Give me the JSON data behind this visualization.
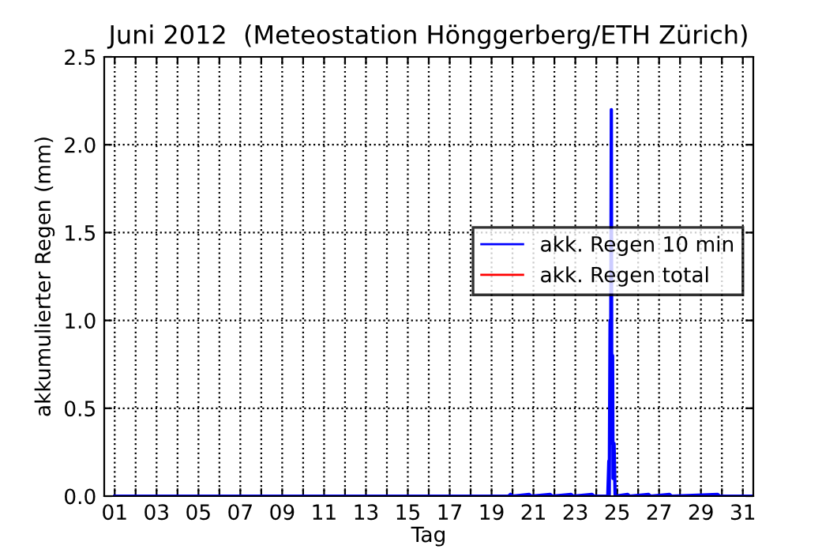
{
  "chart_data": {
    "type": "line",
    "title": "Juni 2012  (Meteostation Hönggerberg/ETH Zürich)",
    "xlabel": "Tag",
    "ylabel": "akkumulierter Regen (mm)",
    "x": [
      1,
      19.8,
      19.9,
      20.0,
      20.8,
      20.9,
      21.8,
      21.9,
      22.8,
      22.9,
      23.8,
      23.9,
      24.55,
      24.6,
      24.62,
      24.66,
      24.68,
      24.72,
      24.74,
      24.78,
      24.8,
      24.85,
      24.9,
      25.5,
      25.6,
      26.5,
      26.6,
      27.5,
      27.6,
      29.8,
      29.9,
      31.4
    ],
    "series": [
      {
        "name": "akk. Regen 10 min",
        "color": "#0000ff",
        "values": [
          0,
          0,
          0.01,
          0,
          0.01,
          0,
          0.01,
          0,
          0.01,
          0,
          0.01,
          0,
          0,
          0.2,
          0,
          1.0,
          0.3,
          2.2,
          0.5,
          0.8,
          0.1,
          0.3,
          0,
          0.01,
          0,
          0.01,
          0,
          0.01,
          0,
          0.01,
          0,
          0
        ]
      },
      {
        "name": "akk. Regen total",
        "color": "#ff0000",
        "values": [
          null,
          null,
          null,
          null,
          null,
          null,
          null,
          null,
          null,
          null,
          null,
          null,
          null,
          null,
          null,
          null,
          null,
          null,
          null,
          null,
          null,
          null,
          null,
          null,
          null,
          null,
          null,
          null,
          null,
          null,
          null,
          null
        ]
      }
    ],
    "xlim": [
      0.5,
      31.5
    ],
    "xticks": [
      {
        "value": 1,
        "label": "01"
      },
      {
        "value": 2,
        "label": null
      },
      {
        "value": 3,
        "label": "03"
      },
      {
        "value": 4,
        "label": null
      },
      {
        "value": 5,
        "label": "05"
      },
      {
        "value": 6,
        "label": null
      },
      {
        "value": 7,
        "label": "07"
      },
      {
        "value": 8,
        "label": null
      },
      {
        "value": 9,
        "label": "09"
      },
      {
        "value": 10,
        "label": null
      },
      {
        "value": 11,
        "label": "11"
      },
      {
        "value": 12,
        "label": null
      },
      {
        "value": 13,
        "label": "13"
      },
      {
        "value": 14,
        "label": null
      },
      {
        "value": 15,
        "label": "15"
      },
      {
        "value": 16,
        "label": null
      },
      {
        "value": 17,
        "label": "17"
      },
      {
        "value": 18,
        "label": null
      },
      {
        "value": 19,
        "label": "19"
      },
      {
        "value": 20,
        "label": null
      },
      {
        "value": 21,
        "label": "21"
      },
      {
        "value": 22,
        "label": null
      },
      {
        "value": 23,
        "label": "23"
      },
      {
        "value": 24,
        "label": null
      },
      {
        "value": 25,
        "label": "25"
      },
      {
        "value": 26,
        "label": null
      },
      {
        "value": 27,
        "label": "27"
      },
      {
        "value": 28,
        "label": null
      },
      {
        "value": 29,
        "label": "29"
      },
      {
        "value": 30,
        "label": null
      },
      {
        "value": 31,
        "label": "31"
      }
    ],
    "ylim": [
      0,
      2.5
    ],
    "yticks": [
      {
        "value": 0,
        "label": "0.0"
      },
      {
        "value": 0.5,
        "label": "0.5"
      },
      {
        "value": 1.0,
        "label": "1.0"
      },
      {
        "value": 1.5,
        "label": "1.5"
      },
      {
        "value": 2.0,
        "label": "2.0"
      },
      {
        "value": 2.5,
        "label": "2.5"
      }
    ],
    "grid": true,
    "legend": "right",
    "line_style": "solid"
  }
}
